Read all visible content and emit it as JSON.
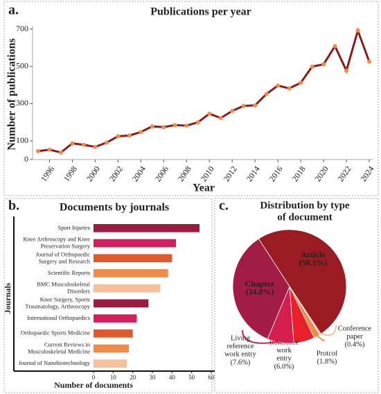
{
  "chart_data": [
    {
      "type": "line",
      "panel": "a.",
      "title": "Publications per year",
      "x_label": "Year",
      "y_label": "Number of publications",
      "x": [
        1995,
        1996,
        1997,
        1998,
        1999,
        2000,
        2001,
        2002,
        2003,
        2004,
        2005,
        2006,
        2007,
        2008,
        2009,
        2010,
        2011,
        2012,
        2013,
        2014,
        2015,
        2016,
        2017,
        2018,
        2019,
        2020,
        2021,
        2022,
        2023,
        2024
      ],
      "series": [
        {
          "name": "Publications",
          "color": "#8b1a1a",
          "marker_color": "#f08c4a",
          "values": [
            45,
            53,
            38,
            87,
            79,
            68,
            91,
            125,
            129,
            148,
            178,
            174,
            185,
            182,
            200,
            246,
            223,
            261,
            288,
            291,
            352,
            397,
            382,
            412,
            499,
            511,
            609,
            477,
            692,
            526
          ]
        }
      ],
      "xlim": [
        1995,
        2024
      ],
      "xticks": [
        1996,
        1998,
        2000,
        2002,
        2004,
        2006,
        2008,
        2010,
        2012,
        2014,
        2016,
        2018,
        2020,
        2022,
        2024
      ],
      "ylim": [
        0,
        700
      ],
      "yticks": [
        0,
        100,
        300,
        500,
        700
      ]
    },
    {
      "type": "barh",
      "panel": "b.",
      "title": "Documents by journals",
      "x_label": "Number of documents",
      "y_label": "Journals",
      "categories": [
        "Sport Injuries",
        "Knee Arthroscopy and Knee\nPreservation Surgery",
        "Journal of Orthopaedic\nSurgery and Research",
        "Scientific Reports",
        "BMC Musculoskeletal\nDisorders",
        "Knee Surgery, Sports\nTraumatology, Arthroscopy",
        "International Orthopaedics",
        "Orthopaedic Sports Medicine",
        "Current Reviews in\nMusculoskeletal Medicine",
        "Journal  of Nanobiotechnology"
      ],
      "values": [
        54,
        42,
        40,
        38,
        34,
        28,
        22,
        20,
        18,
        17
      ],
      "colors": [
        "#9b1b3f",
        "#d41f5e",
        "#e05a2b",
        "#f08c4a",
        "#f5c09a",
        "#9b1b3f",
        "#d41f5e",
        "#e05a2b",
        "#f08c4a",
        "#f5c09a"
      ],
      "xlim": [
        0,
        60
      ],
      "xticks": [
        0,
        10,
        20,
        30,
        40,
        50,
        60
      ]
    },
    {
      "type": "pie",
      "panel": "c.",
      "title": "Distribution by type\nof document",
      "categories": [
        "Article",
        "Conference\npaper",
        "Protcol",
        "Reference\nwork\nentry",
        "Living\nreference\nwork entry",
        "Chapter"
      ],
      "values": [
        50.3,
        0.4,
        1.8,
        6.0,
        7.6,
        34.8
      ],
      "value_labels": [
        "(50.3%)",
        "(0.4%)",
        "(1.8%)",
        "(6.0%)",
        "(7.6%)",
        "(34.8%)"
      ],
      "colors": [
        "#9b1b22",
        "#f5c09a",
        "#f08c4a",
        "#e8202a",
        "#d41f4e",
        "#a31c45"
      ]
    }
  ]
}
